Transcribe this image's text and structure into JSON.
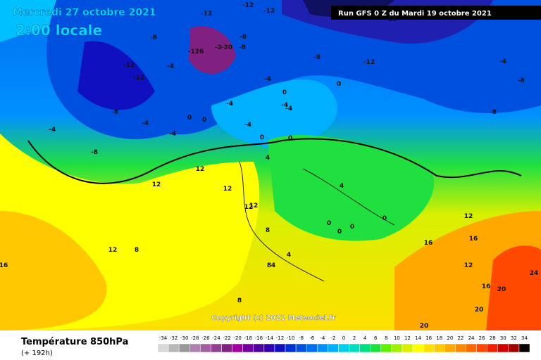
{
  "header": {
    "date": "Mercredi 27 octobre 2021",
    "time": "2:00 locale",
    "run": "Run GFS 0 Z du Mardi 19 octobre 2021"
  },
  "footer": {
    "title": "Température 850hPa",
    "lead": "(+ 192h)",
    "copyright": "Copyright (c) 2021 Meteociel.fr"
  },
  "legend": {
    "values": [
      -34,
      -32,
      -30,
      -28,
      -26,
      -24,
      -22,
      -20,
      -18,
      -16,
      -14,
      -12,
      -10,
      -8,
      -6,
      -4,
      -2,
      0,
      2,
      4,
      6,
      8,
      10,
      12,
      14,
      16,
      18,
      20,
      22,
      24,
      26,
      28,
      30,
      32,
      34
    ],
    "colors": [
      "#d8d8d8",
      "#b8b8b8",
      "#989898",
      "#b080b0",
      "#a060a0",
      "#904090",
      "#802080",
      "#a000a0",
      "#7000a0",
      "#5000a0",
      "#3000b0",
      "#1010c0",
      "#0030d0",
      "#0050e0",
      "#0070f0",
      "#0090ff",
      "#00b0ff",
      "#00d0f0",
      "#00e0c0",
      "#00e080",
      "#20e040",
      "#60f000",
      "#a0f000",
      "#d8f000",
      "#ffff00",
      "#ffe000",
      "#ffc800",
      "#ffa800",
      "#ff8800",
      "#ff6800",
      "#ff4800",
      "#f02000",
      "#d00000",
      "#a00000",
      "#000000"
    ]
  },
  "map_labels": [
    "-12",
    "-12",
    "-12",
    "-16",
    "-8",
    "-12",
    "-12",
    "-4",
    "-8",
    "-126",
    "-2",
    "-20",
    "-8",
    "-8",
    "-4",
    "-8",
    "-12",
    "-4",
    "0",
    "-4",
    "-4",
    "0",
    "-4",
    "-8",
    "-4",
    "-4",
    "0",
    "0",
    "-8",
    "-8",
    "-4",
    "-4",
    "0",
    "0",
    "4",
    "12",
    "12",
    "12",
    "12",
    "12",
    "8",
    "4",
    "0",
    "0",
    "0",
    "8",
    "12",
    "12",
    "16",
    "16",
    "8",
    "4",
    "8",
    "12",
    "16",
    "16",
    "20",
    "24",
    "20",
    "20",
    "0",
    "4"
  ]
}
